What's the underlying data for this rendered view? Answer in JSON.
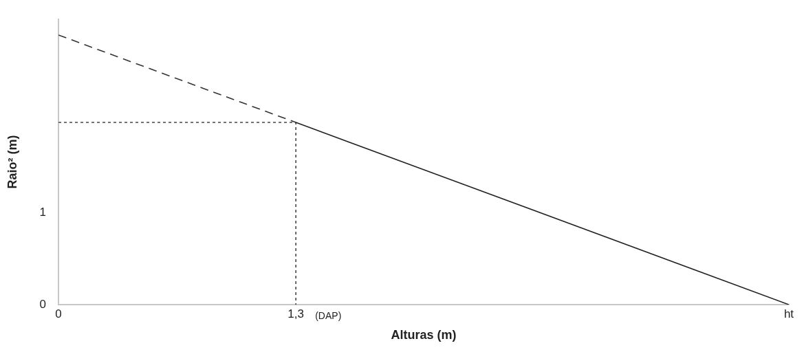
{
  "chart_data": {
    "type": "line",
    "xlabel": "Alturas (m)",
    "ylabel": "Raio² (m)",
    "xlim": [
      0,
      4.0
    ],
    "xticks": [
      0,
      {
        "value": 1.3,
        "label": "1,3"
      },
      {
        "value": 4.0,
        "label": "ht"
      }
    ],
    "ylim": [
      0,
      3.1
    ],
    "yticks": [
      0,
      1
    ],
    "grid": false,
    "legend": false,
    "marker": "none",
    "series": [
      {
        "x": [
          0,
          1.3
        ],
        "values": [
          2.93,
          1.98
        ],
        "color": "#333333",
        "line_style": "dashed"
      },
      {
        "x": [
          1.3,
          4.0
        ],
        "values": [
          1.98,
          0
        ],
        "color": "#222222",
        "line_style": "solid"
      },
      {
        "x": [
          0,
          1.3,
          1.3
        ],
        "values": [
          1.98,
          1.98,
          0
        ],
        "color": "#444444",
        "line_style": "dotted"
      }
    ],
    "annotations": [
      {
        "text": "(DAP)",
        "x": 1.3,
        "y": 0
      }
    ]
  }
}
